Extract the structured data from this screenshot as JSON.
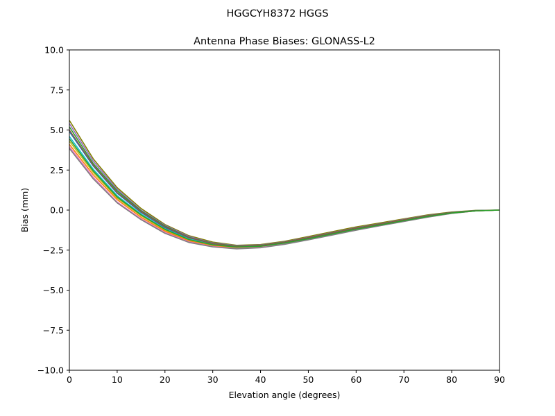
{
  "chart_data": {
    "type": "line",
    "suptitle": "HGGCYH8372       HGGS",
    "title": "Antenna Phase Biases: GLONASS-L2",
    "xlabel": "Elevation angle (degrees)",
    "ylabel": "Bias (mm)",
    "xlim": [
      0,
      90
    ],
    "ylim": [
      -10,
      10
    ],
    "xticks": [
      0,
      10,
      20,
      30,
      40,
      50,
      60,
      70,
      80,
      90
    ],
    "yticks": [
      -10.0,
      -7.5,
      -5.0,
      -2.5,
      0.0,
      2.5,
      5.0,
      7.5,
      10.0
    ],
    "xtick_labels": [
      "0",
      "10",
      "20",
      "30",
      "40",
      "50",
      "60",
      "70",
      "80",
      "90"
    ],
    "ytick_labels": [
      "−10.0",
      "−7.5",
      "−5.0",
      "−2.5",
      "0.0",
      "2.5",
      "5.0",
      "7.5",
      "10.0"
    ],
    "grid": false,
    "legend": "none",
    "x": [
      0,
      5,
      10,
      15,
      20,
      25,
      30,
      35,
      40,
      45,
      50,
      55,
      60,
      65,
      70,
      75,
      80,
      85,
      90
    ],
    "series": [
      {
        "color": "#808000",
        "values": [
          5.6,
          3.2,
          1.4,
          0.1,
          -0.9,
          -1.6,
          -2.0,
          -2.2,
          -2.15,
          -1.95,
          -1.65,
          -1.35,
          -1.05,
          -0.8,
          -0.55,
          -0.3,
          -0.12,
          -0.02,
          0.0
        ]
      },
      {
        "color": "#9467bd",
        "values": [
          5.4,
          3.05,
          1.3,
          0.0,
          -0.95,
          -1.65,
          -2.05,
          -2.22,
          -2.18,
          -1.98,
          -1.7,
          -1.4,
          -1.1,
          -0.85,
          -0.58,
          -0.33,
          -0.14,
          -0.03,
          0.0
        ]
      },
      {
        "color": "#2ca02c",
        "values": [
          5.2,
          2.9,
          1.2,
          -0.05,
          -1.0,
          -1.7,
          -2.08,
          -2.25,
          -2.2,
          -2.0,
          -1.72,
          -1.42,
          -1.12,
          -0.87,
          -0.6,
          -0.35,
          -0.15,
          -0.03,
          0.0
        ]
      },
      {
        "color": "#1f77b4",
        "values": [
          4.9,
          2.75,
          1.05,
          -0.15,
          -1.1,
          -1.75,
          -2.12,
          -2.28,
          -2.22,
          -2.02,
          -1.75,
          -1.45,
          -1.15,
          -0.9,
          -0.63,
          -0.38,
          -0.17,
          -0.04,
          0.0
        ]
      },
      {
        "color": "#17becf",
        "values": [
          4.6,
          2.55,
          0.9,
          -0.25,
          -1.18,
          -1.8,
          -2.15,
          -2.3,
          -2.25,
          -2.05,
          -1.78,
          -1.48,
          -1.18,
          -0.92,
          -0.65,
          -0.4,
          -0.18,
          -0.05,
          0.0
        ]
      },
      {
        "color": "#bcbd22",
        "values": [
          4.3,
          2.35,
          0.75,
          -0.35,
          -1.25,
          -1.88,
          -2.2,
          -2.33,
          -2.28,
          -2.08,
          -1.8,
          -1.5,
          -1.2,
          -0.94,
          -0.67,
          -0.41,
          -0.19,
          -0.05,
          0.0
        ]
      },
      {
        "color": "#ff7f0e",
        "values": [
          4.1,
          2.2,
          0.65,
          -0.45,
          -1.32,
          -1.93,
          -2.25,
          -2.37,
          -2.3,
          -2.1,
          -1.82,
          -1.52,
          -1.22,
          -0.95,
          -0.68,
          -0.42,
          -0.2,
          -0.05,
          0.0
        ]
      },
      {
        "color": "#e377c2",
        "values": [
          3.95,
          2.05,
          0.5,
          -0.55,
          -1.4,
          -1.98,
          -2.28,
          -2.4,
          -2.33,
          -2.12,
          -1.84,
          -1.54,
          -1.24,
          -0.97,
          -0.7,
          -0.43,
          -0.2,
          -0.05,
          0.0
        ]
      },
      {
        "color": "#7f7f7f",
        "values": [
          3.85,
          1.95,
          0.45,
          -0.6,
          -1.45,
          -2.02,
          -2.3,
          -2.42,
          -2.35,
          -2.14,
          -1.86,
          -1.56,
          -1.26,
          -0.98,
          -0.71,
          -0.44,
          -0.21,
          -0.05,
          0.0
        ]
      },
      {
        "color": "#8c564b",
        "values": [
          5.0,
          2.8,
          1.1,
          -0.1,
          -1.05,
          -1.72,
          -2.1,
          -2.27,
          -2.21,
          -2.01,
          -1.73,
          -1.43,
          -1.13,
          -0.88,
          -0.61,
          -0.36,
          -0.16,
          -0.04,
          0.0
        ]
      },
      {
        "color": "#2ca02c",
        "values": [
          4.45,
          2.45,
          0.82,
          -0.3,
          -1.2,
          -1.84,
          -2.17,
          -2.31,
          -2.26,
          -2.06,
          -1.79,
          -1.49,
          -1.19,
          -0.93,
          -0.66,
          -0.4,
          -0.18,
          -0.05,
          0.0
        ]
      }
    ]
  }
}
